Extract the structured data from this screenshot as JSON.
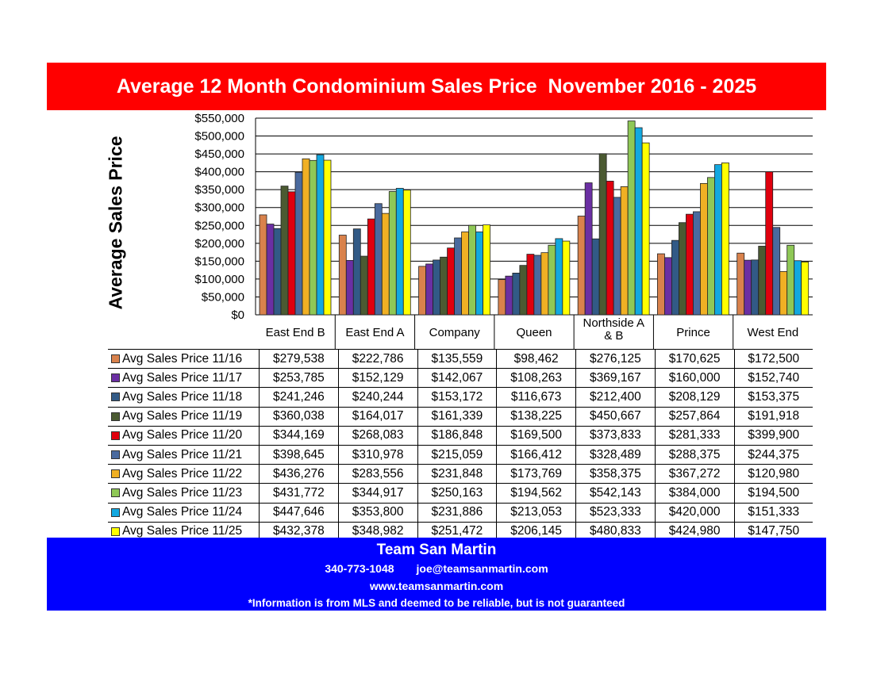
{
  "chart_data": {
    "type": "bar",
    "title": "Average 12 Month Condominium Sales Price  November 2016 - 2025",
    "ylabel": "Average Sales Price",
    "xlabel": "",
    "ylim": [
      0,
      550000
    ],
    "yticks": [
      "$0",
      "$50,000",
      "$100,000",
      "$150,000",
      "$200,000",
      "$250,000",
      "$300,000",
      "$350,000",
      "$400,000",
      "$450,000",
      "$500,000",
      "$550,000"
    ],
    "grid": true,
    "legend": "table-below",
    "categories": [
      "East End B",
      "East End A",
      "Company",
      "Queen",
      "Northside A & B",
      "Prince",
      "West End"
    ],
    "series": [
      {
        "name": "Avg Sales Price 11/16",
        "color": "#d9824c",
        "values": [
          279538,
          222786,
          135559,
          98462,
          276125,
          170625,
          172500
        ],
        "labels": [
          "$279,538",
          "$222,786",
          "$135,559",
          "$98,462",
          "$276,125",
          "$170,625",
          "$172,500"
        ]
      },
      {
        "name": "Avg Sales Price 11/17",
        "color": "#6b2fa3",
        "values": [
          253785,
          152129,
          142067,
          108263,
          369167,
          160000,
          152740
        ],
        "labels": [
          "$253,785",
          "$152,129",
          "$142,067",
          "$108,263",
          "$369,167",
          "$160,000",
          "$152,740"
        ]
      },
      {
        "name": "Avg Sales Price 11/18",
        "color": "#325a86",
        "values": [
          241246,
          240244,
          153172,
          116673,
          212400,
          208129,
          153375
        ],
        "labels": [
          "$241,246",
          "$240,244",
          "$153,172",
          "$116,673",
          "$212,400",
          "$208,129",
          "$153,375"
        ]
      },
      {
        "name": "Avg Sales Price 11/19",
        "color": "#4b5a32",
        "values": [
          360038,
          164017,
          161339,
          138225,
          450667,
          257864,
          191918
        ],
        "labels": [
          "$360,038",
          "$164,017",
          "$161,339",
          "$138,225",
          "$450,667",
          "$257,864",
          "$191,918"
        ]
      },
      {
        "name": "Avg Sales Price 11/20",
        "color": "#e0000e",
        "values": [
          344169,
          268083,
          186848,
          169500,
          373833,
          281333,
          399900
        ],
        "labels": [
          "$344,169",
          "$268,083",
          "$186,848",
          "$169,500",
          "$373,833",
          "$281,333",
          "$399,900"
        ]
      },
      {
        "name": "Avg Sales Price 11/21",
        "color": "#4a6a9e",
        "values": [
          398645,
          310978,
          215059,
          166412,
          328489,
          288375,
          244375
        ],
        "labels": [
          "$398,645",
          "$310,978",
          "$215,059",
          "$166,412",
          "$328,489",
          "$288,375",
          "$244,375"
        ]
      },
      {
        "name": "Avg Sales Price 11/22",
        "color": "#f0b024",
        "values": [
          436276,
          283556,
          231848,
          173769,
          358375,
          367272,
          120980
        ],
        "labels": [
          "$436,276",
          "$283,556",
          "$231,848",
          "$173,769",
          "$358,375",
          "$367,272",
          "$120,980"
        ]
      },
      {
        "name": "Avg Sales Price 11/23",
        "color": "#8fc856",
        "values": [
          431772,
          344917,
          250163,
          194562,
          542143,
          384000,
          194500
        ],
        "labels": [
          "$431,772",
          "$344,917",
          "$250,163",
          "$194,562",
          "$542,143",
          "$384,000",
          "$194,500"
        ]
      },
      {
        "name": "Avg Sales Price 11/24",
        "color": "#12a8e0",
        "values": [
          447646,
          353800,
          231886,
          213053,
          523333,
          420000,
          151333
        ],
        "labels": [
          "$447,646",
          "$353,800",
          "$231,886",
          "$213,053",
          "$523,333",
          "$420,000",
          "$151,333"
        ]
      },
      {
        "name": "Avg Sales Price 11/25",
        "color": "#ffff00",
        "values": [
          432378,
          348982,
          251472,
          206145,
          480833,
          424980,
          147750
        ],
        "labels": [
          "$432,378",
          "$348,982",
          "$251,472",
          "$206,145",
          "$480,833",
          "$424,980",
          "$147,750"
        ]
      }
    ]
  },
  "footer": {
    "name": "Team San Martin",
    "phone": "340-773-1048",
    "email": "joe@teamsanmartin.com",
    "website": "www.teamsanmartin.com",
    "disclaimer": "*Information is from MLS and deemed to be reliable, but is not guaranteed"
  }
}
